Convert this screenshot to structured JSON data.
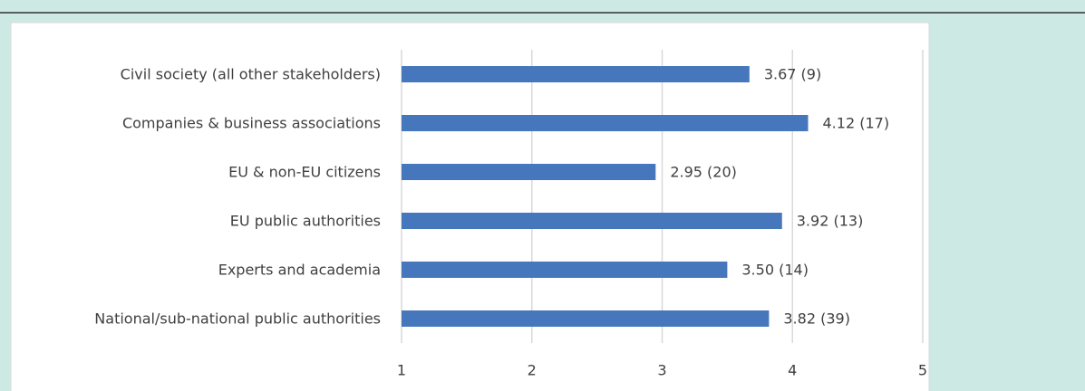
{
  "chart_data": {
    "type": "barh",
    "categories": [
      "Civil society (all other stakeholders)",
      "Companies & business associations",
      "EU & non-EU citizens",
      "EU public authorities",
      "Experts and academia",
      "National/sub-national public authorities"
    ],
    "values": [
      3.67,
      4.12,
      2.95,
      3.92,
      3.5,
      3.82
    ],
    "value_labels": [
      "3.67 (9)",
      "4.12 (17)",
      "2.95 (20)",
      "3.92 (13)",
      "3.50 (14)",
      "3.82 (39)"
    ],
    "color": "#4677bd",
    "xlim": [
      1,
      5
    ],
    "xticks": [
      1,
      2,
      3,
      4,
      5
    ],
    "grid": true
  }
}
